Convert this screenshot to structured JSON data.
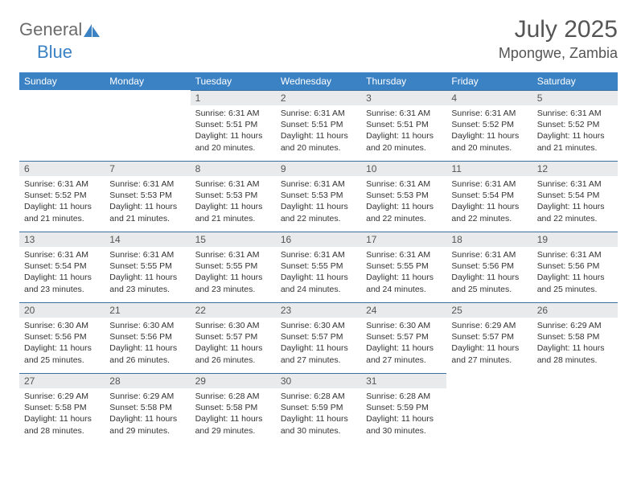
{
  "brand": {
    "part1": "General",
    "part2": "Blue"
  },
  "title": "July 2025",
  "location": "Mpongwe, Zambia",
  "colors": {
    "header_bg": "#3b82c4",
    "header_text": "#ffffff",
    "daynum_bg": "#e9eaeb",
    "daynum_border": "#3b6fa0",
    "body_text": "#333333",
    "brand_gray": "#6b6b6b",
    "brand_blue": "#3b82c4"
  },
  "weekdays": [
    "Sunday",
    "Monday",
    "Tuesday",
    "Wednesday",
    "Thursday",
    "Friday",
    "Saturday"
  ],
  "weeks": [
    [
      null,
      null,
      {
        "n": "1",
        "sr": "6:31 AM",
        "ss": "5:51 PM",
        "dl": "11 hours and 20 minutes."
      },
      {
        "n": "2",
        "sr": "6:31 AM",
        "ss": "5:51 PM",
        "dl": "11 hours and 20 minutes."
      },
      {
        "n": "3",
        "sr": "6:31 AM",
        "ss": "5:51 PM",
        "dl": "11 hours and 20 minutes."
      },
      {
        "n": "4",
        "sr": "6:31 AM",
        "ss": "5:52 PM",
        "dl": "11 hours and 20 minutes."
      },
      {
        "n": "5",
        "sr": "6:31 AM",
        "ss": "5:52 PM",
        "dl": "11 hours and 21 minutes."
      }
    ],
    [
      {
        "n": "6",
        "sr": "6:31 AM",
        "ss": "5:52 PM",
        "dl": "11 hours and 21 minutes."
      },
      {
        "n": "7",
        "sr": "6:31 AM",
        "ss": "5:53 PM",
        "dl": "11 hours and 21 minutes."
      },
      {
        "n": "8",
        "sr": "6:31 AM",
        "ss": "5:53 PM",
        "dl": "11 hours and 21 minutes."
      },
      {
        "n": "9",
        "sr": "6:31 AM",
        "ss": "5:53 PM",
        "dl": "11 hours and 22 minutes."
      },
      {
        "n": "10",
        "sr": "6:31 AM",
        "ss": "5:53 PM",
        "dl": "11 hours and 22 minutes."
      },
      {
        "n": "11",
        "sr": "6:31 AM",
        "ss": "5:54 PM",
        "dl": "11 hours and 22 minutes."
      },
      {
        "n": "12",
        "sr": "6:31 AM",
        "ss": "5:54 PM",
        "dl": "11 hours and 22 minutes."
      }
    ],
    [
      {
        "n": "13",
        "sr": "6:31 AM",
        "ss": "5:54 PM",
        "dl": "11 hours and 23 minutes."
      },
      {
        "n": "14",
        "sr": "6:31 AM",
        "ss": "5:55 PM",
        "dl": "11 hours and 23 minutes."
      },
      {
        "n": "15",
        "sr": "6:31 AM",
        "ss": "5:55 PM",
        "dl": "11 hours and 23 minutes."
      },
      {
        "n": "16",
        "sr": "6:31 AM",
        "ss": "5:55 PM",
        "dl": "11 hours and 24 minutes."
      },
      {
        "n": "17",
        "sr": "6:31 AM",
        "ss": "5:55 PM",
        "dl": "11 hours and 24 minutes."
      },
      {
        "n": "18",
        "sr": "6:31 AM",
        "ss": "5:56 PM",
        "dl": "11 hours and 25 minutes."
      },
      {
        "n": "19",
        "sr": "6:31 AM",
        "ss": "5:56 PM",
        "dl": "11 hours and 25 minutes."
      }
    ],
    [
      {
        "n": "20",
        "sr": "6:30 AM",
        "ss": "5:56 PM",
        "dl": "11 hours and 25 minutes."
      },
      {
        "n": "21",
        "sr": "6:30 AM",
        "ss": "5:56 PM",
        "dl": "11 hours and 26 minutes."
      },
      {
        "n": "22",
        "sr": "6:30 AM",
        "ss": "5:57 PM",
        "dl": "11 hours and 26 minutes."
      },
      {
        "n": "23",
        "sr": "6:30 AM",
        "ss": "5:57 PM",
        "dl": "11 hours and 27 minutes."
      },
      {
        "n": "24",
        "sr": "6:30 AM",
        "ss": "5:57 PM",
        "dl": "11 hours and 27 minutes."
      },
      {
        "n": "25",
        "sr": "6:29 AM",
        "ss": "5:57 PM",
        "dl": "11 hours and 27 minutes."
      },
      {
        "n": "26",
        "sr": "6:29 AM",
        "ss": "5:58 PM",
        "dl": "11 hours and 28 minutes."
      }
    ],
    [
      {
        "n": "27",
        "sr": "6:29 AM",
        "ss": "5:58 PM",
        "dl": "11 hours and 28 minutes."
      },
      {
        "n": "28",
        "sr": "6:29 AM",
        "ss": "5:58 PM",
        "dl": "11 hours and 29 minutes."
      },
      {
        "n": "29",
        "sr": "6:28 AM",
        "ss": "5:58 PM",
        "dl": "11 hours and 29 minutes."
      },
      {
        "n": "30",
        "sr": "6:28 AM",
        "ss": "5:59 PM",
        "dl": "11 hours and 30 minutes."
      },
      {
        "n": "31",
        "sr": "6:28 AM",
        "ss": "5:59 PM",
        "dl": "11 hours and 30 minutes."
      },
      null,
      null
    ]
  ],
  "labels": {
    "sunrise": "Sunrise:",
    "sunset": "Sunset:",
    "daylight": "Daylight:"
  }
}
